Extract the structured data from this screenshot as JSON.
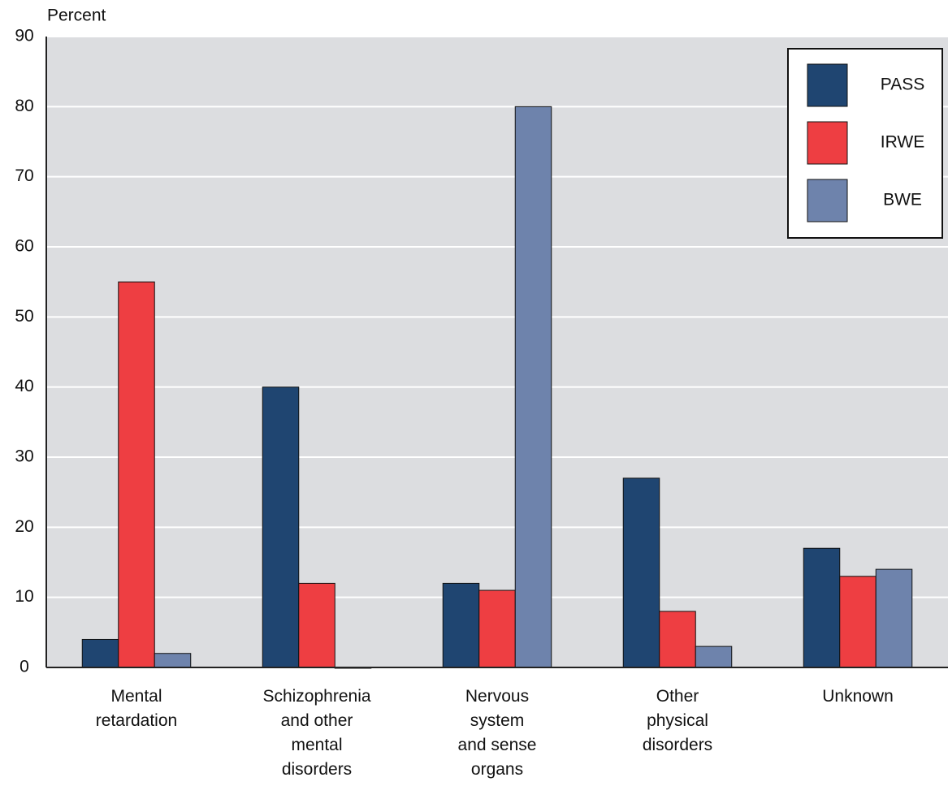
{
  "chart_data": {
    "type": "bar",
    "y_label": "Percent",
    "categories": [
      "Mental\nretardation",
      "Schizophrenia\nand other\nmental\ndisorders",
      "Nervous\nsystem\nand sense\norgans",
      "Other\nphysical\ndisorders",
      "Unknown"
    ],
    "series": [
      {
        "name": "PASS",
        "color": "#1f4571",
        "values": [
          4,
          40,
          12,
          27,
          17
        ]
      },
      {
        "name": "IRWE",
        "color": "#ee3e42",
        "values": [
          55,
          12,
          11,
          8,
          13
        ]
      },
      {
        "name": "BWE",
        "color": "#6e83ac",
        "values": [
          2,
          0,
          80,
          3,
          14
        ]
      }
    ],
    "ylim": [
      0,
      90
    ],
    "yticks": [
      0,
      10,
      20,
      30,
      40,
      50,
      60,
      70,
      80,
      90
    ],
    "grid": true,
    "legend": "top-right"
  }
}
